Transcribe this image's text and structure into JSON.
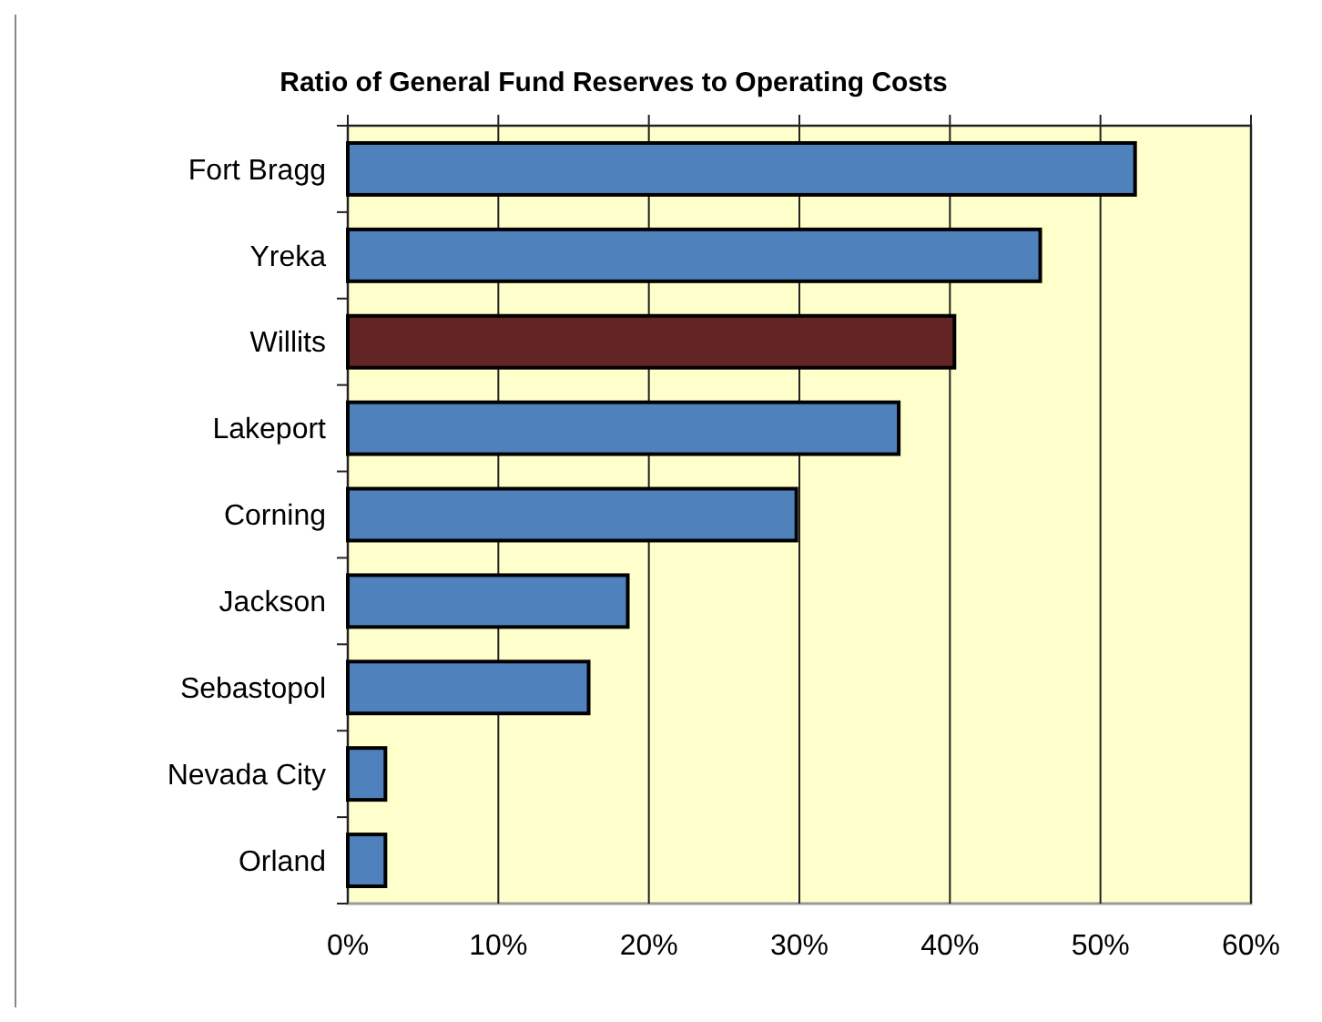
{
  "chart_data": {
    "type": "bar",
    "orientation": "horizontal",
    "title": "Ratio of General Fund Reserves to Operating Costs",
    "categories": [
      "Fort Bragg",
      "Yreka",
      "Willits",
      "Lakeport",
      "Corning",
      "Jackson",
      "Sebastopol",
      "Nevada City",
      "Orland"
    ],
    "values": [
      52.3,
      46.0,
      40.3,
      36.6,
      29.8,
      18.6,
      16.0,
      2.5,
      2.5
    ],
    "colors": [
      "#4f81bd",
      "#4f81bd",
      "#632523",
      "#4f81bd",
      "#4f81bd",
      "#4f81bd",
      "#4f81bd",
      "#4f81bd",
      "#4f81bd"
    ],
    "xlim": [
      0,
      60
    ],
    "xticks": [
      {
        "value": 0,
        "label": "0%"
      },
      {
        "value": 10,
        "label": "10%"
      },
      {
        "value": 20,
        "label": "20%"
      },
      {
        "value": 30,
        "label": "30%"
      },
      {
        "value": 40,
        "label": "40%"
      },
      {
        "value": 50,
        "label": "50%"
      },
      {
        "value": 60,
        "label": "60%"
      }
    ],
    "grid": "x"
  }
}
